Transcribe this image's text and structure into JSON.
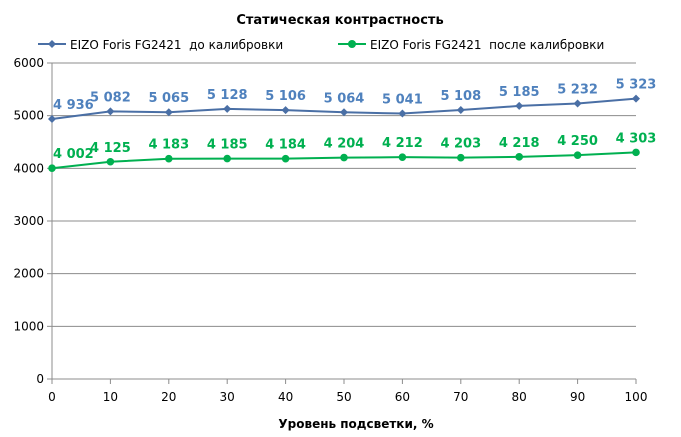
{
  "chart_data": {
    "type": "line",
    "title": "Статическая контрастность",
    "xlabel": "Уровень подсветки, %",
    "ylabel": "",
    "x": [
      0,
      10,
      20,
      30,
      40,
      50,
      60,
      70,
      80,
      90,
      100
    ],
    "xticks": [
      "0",
      "10",
      "20",
      "30",
      "40",
      "50",
      "60",
      "70",
      "80",
      "90",
      "100"
    ],
    "ylim": [
      0,
      6000
    ],
    "yticks": [
      "0",
      "1000",
      "2000",
      "3000",
      "4000",
      "5000",
      "6000"
    ],
    "ytick_values": [
      0,
      1000,
      2000,
      3000,
      4000,
      5000,
      6000
    ],
    "grid": true,
    "legend_position": "top",
    "series": [
      {
        "name": "EIZO Foris FG2421  до калибровки",
        "color": "#4a6fa5",
        "marker": "diamond",
        "values": [
          4936,
          5082,
          5065,
          5128,
          5106,
          5064,
          5041,
          5108,
          5185,
          5232,
          5323
        ],
        "labels": [
          "4 936",
          "5 082",
          "5 065",
          "5 128",
          "5 106",
          "5 064",
          "5 041",
          "5 108",
          "5 185",
          "5 232",
          "5 323"
        ],
        "label_color": "#4f81bd"
      },
      {
        "name": "EIZO Foris FG2421  после калибровки",
        "color": "#00b050",
        "marker": "circle",
        "values": [
          4002,
          4125,
          4183,
          4185,
          4184,
          4204,
          4212,
          4203,
          4218,
          4250,
          4303
        ],
        "labels": [
          "4 002",
          "4 125",
          "4 183",
          "4 185",
          "4 184",
          "4 204",
          "4 212",
          "4 203",
          "4 218",
          "4 250",
          "4 303"
        ],
        "label_color": "#00b050"
      }
    ]
  }
}
